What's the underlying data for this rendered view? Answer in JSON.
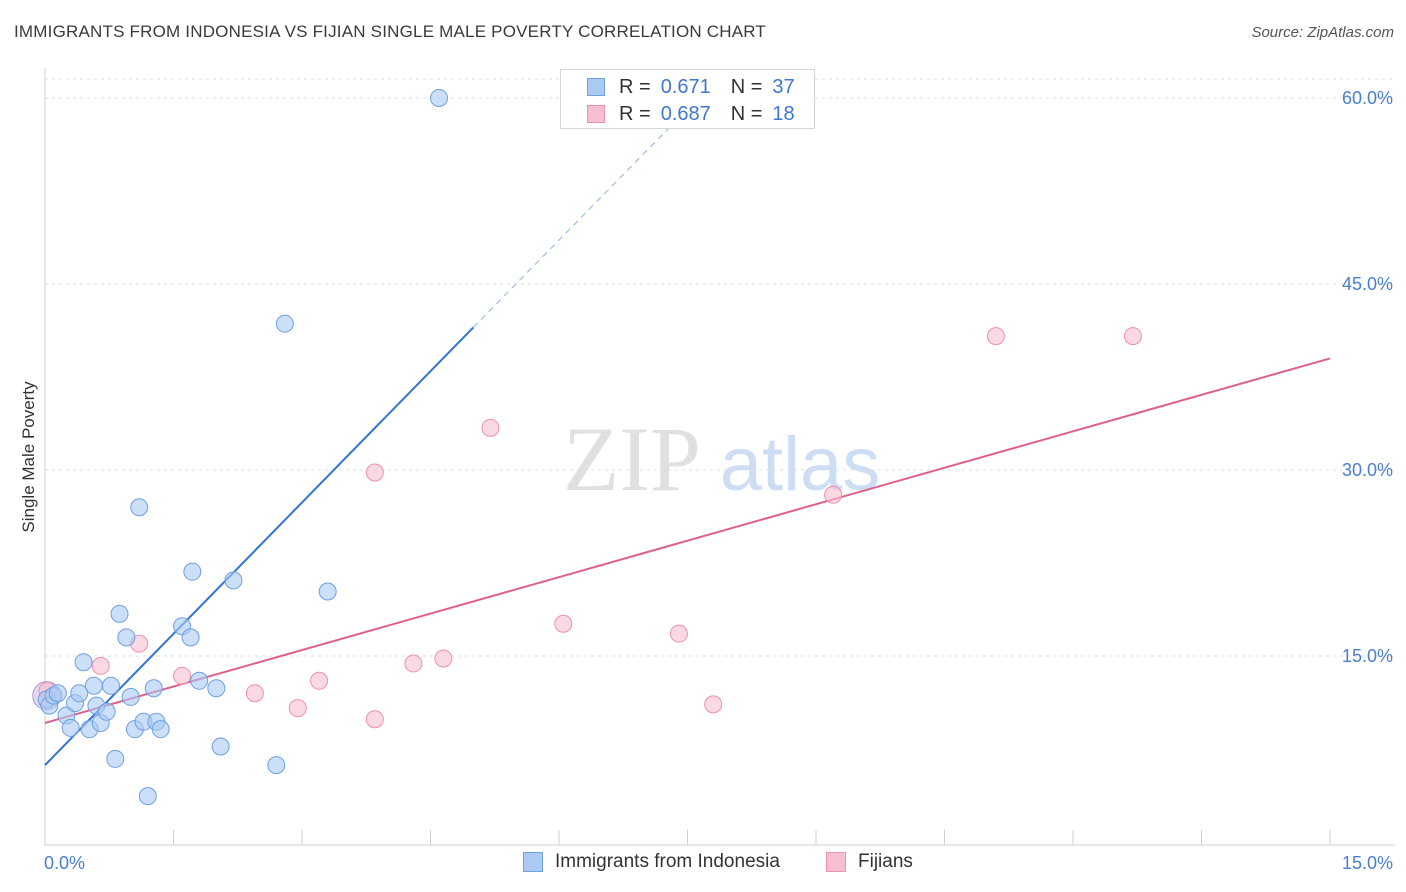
{
  "title": "IMMIGRANTS FROM INDONESIA VS FIJIAN SINGLE MALE POVERTY CORRELATION CHART",
  "source": "Source: ZipAtlas.com",
  "watermark": {
    "zip": "ZIP",
    "atlas": "atlas"
  },
  "legend": {
    "r_label": "R =",
    "n_label": "N =",
    "series": [
      {
        "r": "0.671",
        "n": "37"
      },
      {
        "r": "0.687",
        "n": "18"
      }
    ]
  },
  "colors": {
    "indonesia_fill": "#aac9f3",
    "indonesia_stroke": "#6fa0e0",
    "indonesia_line": "#2e74d6",
    "fijian_fill": "#f8bfd1",
    "fijian_stroke": "#ee90ae",
    "fijian_line": "#e05f8c",
    "grid": "#dedede",
    "tick_text": "#4a7fd0"
  },
  "chart_data": {
    "type": "scatter",
    "title": "IMMIGRANTS FROM INDONESIA VS FIJIAN SINGLE MALE POVERTY CORRELATION CHART",
    "xlabel": "",
    "ylabel": "Single Male Poverty",
    "xlim": [
      0,
      15
    ],
    "ylim": [
      0,
      62
    ],
    "x_tick_labels": [
      {
        "value": 0,
        "label": "0.0%"
      },
      {
        "value": 15,
        "label": "15.0%"
      }
    ],
    "y_tick_labels": [
      {
        "value": 15,
        "label": "15.0%"
      },
      {
        "value": 30,
        "label": "30.0%"
      },
      {
        "value": 45,
        "label": "45.0%"
      },
      {
        "value": 60,
        "label": "60.0%"
      }
    ],
    "series": [
      {
        "name": "Immigrants from Indonesia",
        "points": [
          [
            0.02,
            11.5
          ],
          [
            0.05,
            11.0
          ],
          [
            0.1,
            11.8
          ],
          [
            0.15,
            12.0
          ],
          [
            0.25,
            10.2
          ],
          [
            0.3,
            9.2
          ],
          [
            0.35,
            11.2
          ],
          [
            0.4,
            12.0
          ],
          [
            0.45,
            14.5
          ],
          [
            0.52,
            9.1
          ],
          [
            0.57,
            12.6
          ],
          [
            0.6,
            11.0
          ],
          [
            0.65,
            9.6
          ],
          [
            0.72,
            10.5
          ],
          [
            0.77,
            12.6
          ],
          [
            0.82,
            6.7
          ],
          [
            0.87,
            18.4
          ],
          [
            0.95,
            16.5
          ],
          [
            1.0,
            11.7
          ],
          [
            1.05,
            9.1
          ],
          [
            1.1,
            27.0
          ],
          [
            1.15,
            9.7
          ],
          [
            1.2,
            3.7
          ],
          [
            1.27,
            12.4
          ],
          [
            1.3,
            9.7
          ],
          [
            1.35,
            9.1
          ],
          [
            1.6,
            17.4
          ],
          [
            1.7,
            16.5
          ],
          [
            1.72,
            21.8
          ],
          [
            1.8,
            13.0
          ],
          [
            2.0,
            12.4
          ],
          [
            2.05,
            7.7
          ],
          [
            2.2,
            21.1
          ],
          [
            2.7,
            6.2
          ],
          [
            2.8,
            41.8
          ],
          [
            3.3,
            20.2
          ],
          [
            4.6,
            60.0
          ]
        ],
        "trend_solid": [
          [
            0.0,
            6.2
          ],
          [
            5.0,
            41.5
          ]
        ],
        "trend_dashed": [
          [
            5.0,
            41.5
          ],
          [
            7.3,
            57.7
          ]
        ]
      },
      {
        "name": "Fijians",
        "points": [
          [
            0.03,
            12.2
          ],
          [
            0.65,
            14.2
          ],
          [
            1.1,
            16.0
          ],
          [
            1.6,
            13.4
          ],
          [
            2.45,
            12.0
          ],
          [
            2.95,
            10.8
          ],
          [
            3.2,
            13.0
          ],
          [
            3.85,
            9.9
          ],
          [
            3.85,
            29.8
          ],
          [
            4.3,
            14.4
          ],
          [
            4.65,
            14.8
          ],
          [
            5.2,
            33.4
          ],
          [
            6.05,
            17.6
          ],
          [
            7.4,
            16.8
          ],
          [
            7.8,
            11.1
          ],
          [
            9.2,
            28.0
          ],
          [
            11.1,
            40.8
          ],
          [
            12.7,
            40.8
          ]
        ],
        "trend_solid": [
          [
            0.0,
            9.6
          ],
          [
            15.0,
            39.0
          ]
        ]
      }
    ]
  }
}
